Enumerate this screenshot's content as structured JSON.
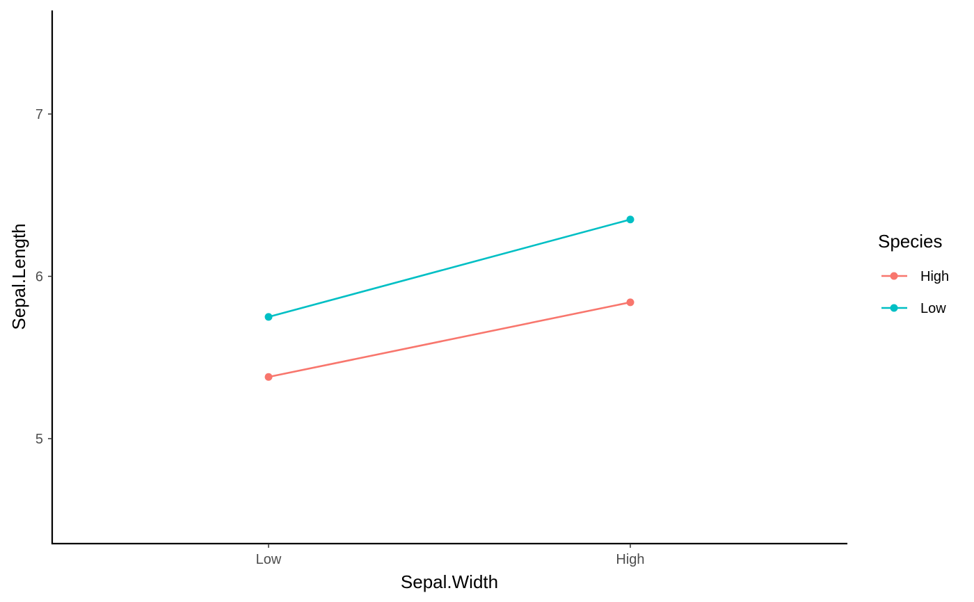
{
  "chart_data": {
    "type": "line",
    "xlabel": "Sepal.Width",
    "ylabel": "Sepal.Length",
    "categories": [
      "Low",
      "High"
    ],
    "ylim": [
      4.4,
      7.65
    ],
    "yticks": [
      5,
      6,
      7
    ],
    "grid": false,
    "legend": {
      "title": "Species",
      "placement": "right"
    },
    "series": [
      {
        "name": "High",
        "color": "#F8766D",
        "values": [
          5.38,
          5.84
        ]
      },
      {
        "name": "Low",
        "color": "#00BFC4",
        "values": [
          5.75,
          6.35
        ]
      }
    ]
  }
}
